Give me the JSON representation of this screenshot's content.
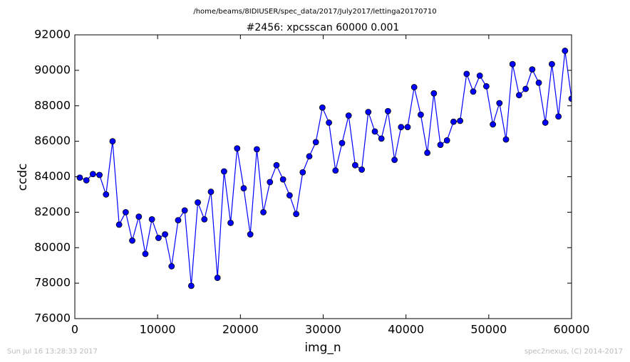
{
  "chart_data": {
    "type": "line",
    "suptitle": "/home/beams/8IDIUSER/spec_data/2017/July2017/lettinga20170710",
    "title": "#2456: xpcsscan 60000 0.001",
    "xlabel": "img_n",
    "ylabel": "ccdc",
    "footer_left": "Sun Jul 16 13:28:33 2017",
    "footer_right": "spec2nexus, (C) 2014-2017",
    "x": [
      600,
      1392,
      2184,
      2976,
      3768,
      4560,
      5352,
      6144,
      6936,
      7728,
      8520,
      9312,
      10104,
      10896,
      11688,
      12480,
      13272,
      14064,
      14856,
      15648,
      16440,
      17232,
      18024,
      18816,
      19608,
      20400,
      21192,
      21984,
      22776,
      23568,
      24360,
      25152,
      25944,
      26736,
      27528,
      28320,
      29112,
      29904,
      30696,
      31488,
      32280,
      33072,
      33864,
      34656,
      35448,
      36240,
      37032,
      37824,
      38616,
      39408,
      40200,
      40992,
      41784,
      42576,
      43368,
      44160,
      44952,
      45744,
      46536,
      47328,
      48120,
      48912,
      49704,
      50496,
      51288,
      52080,
      52872,
      53664,
      54456,
      55248,
      56040,
      56832,
      57624,
      58416,
      59208,
      60000
    ],
    "series": [
      {
        "name": "ccdc",
        "color": "#0000ff",
        "values": [
          83950,
          83800,
          84150,
          84100,
          83000,
          86000,
          81300,
          82000,
          80400,
          81750,
          79650,
          81600,
          80550,
          80750,
          78950,
          81550,
          82100,
          77850,
          82550,
          81600,
          83150,
          78300,
          84300,
          81400,
          85600,
          83350,
          80750,
          85550,
          82000,
          83700,
          84650,
          83850,
          82950,
          81900,
          84250,
          85150,
          85950,
          87900,
          87050,
          84350,
          85900,
          87450,
          84650,
          84400,
          87650,
          86550,
          86150,
          87700,
          84950,
          86800,
          86800,
          89050,
          87500,
          85350,
          88700,
          85800,
          86050,
          87100,
          87150,
          89800,
          88800,
          89700,
          89100,
          86950,
          88150,
          86100,
          90350,
          88600,
          88950,
          90050,
          89300,
          87050,
          90350,
          87400,
          91100,
          88400
        ]
      }
    ],
    "xlim": [
      0,
      60000
    ],
    "xticks": [
      0,
      10000,
      20000,
      30000,
      40000,
      50000,
      60000
    ],
    "ylim": [
      76000,
      92000
    ],
    "yticks": [
      76000,
      78000,
      80000,
      82000,
      84000,
      86000,
      88000,
      90000,
      92000
    ]
  }
}
